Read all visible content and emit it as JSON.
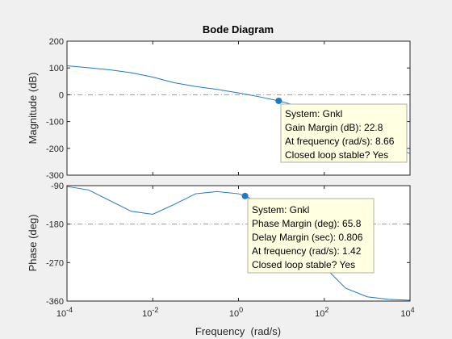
{
  "chart_data": {
    "type": "line",
    "title": "Bode Diagram",
    "xlabel": "Frequency  (rad/s)",
    "x_scale": "log",
    "xlim": [
      0.0001,
      10000
    ],
    "x_ticks": [
      0.0001,
      0.01,
      1,
      100,
      10000
    ],
    "x_tick_labels": [
      {
        "base": "10",
        "exp": "-4"
      },
      {
        "base": "10",
        "exp": "-2"
      },
      {
        "base": "10",
        "exp": "0"
      },
      {
        "base": "10",
        "exp": "2"
      },
      {
        "base": "10",
        "exp": "4"
      }
    ],
    "grid": false,
    "colors": {
      "line": "#1f78c1",
      "refline": "#9a9a9a",
      "tip_bg": "#ffffe1",
      "tip_border": "#b0b0a0",
      "axis": "#262626"
    },
    "panels": [
      {
        "ylabel": "Magnitude (dB)",
        "ylim": [
          -300,
          200
        ],
        "yticks": [
          200,
          100,
          0,
          -100,
          -200,
          -300
        ],
        "ytick_labels": [
          "200",
          "100",
          "0",
          "-100",
          "-200",
          "-300"
        ],
        "reference_line": 0,
        "series": [
          {
            "x": [
              0.0001,
              0.000316,
              0.001,
              0.00316,
              0.01,
              0.0316,
              0.1,
              0.316,
              1,
              3.16,
              8.66,
              31.6,
              100,
              316,
              1000,
              3160,
              10000
            ],
            "y": [
              108,
              101,
              93,
              82,
              66,
              45,
              31,
              20,
              7,
              -8,
              -22.8,
              -47,
              -68,
              -100,
              -140,
              -180,
              -220
            ]
          }
        ],
        "marker": {
          "x": 8.66,
          "y": -22.8
        },
        "datatip": {
          "lines": [
            "System: Gnkl",
            "Gain Margin (dB): 22.8",
            "At frequency (rad/s): 8.66",
            "Closed loop stable? Yes"
          ]
        }
      },
      {
        "ylabel": "Phase (deg)",
        "ylim": [
          -360,
          -90
        ],
        "yticks": [
          -90,
          -180,
          -270,
          -360
        ],
        "ytick_labels": [
          "-90",
          "-180",
          "-270",
          "-360"
        ],
        "reference_line": -180,
        "series": [
          {
            "x": [
              0.0001,
              0.000316,
              0.001,
              0.00316,
              0.01,
              0.0316,
              0.1,
              0.316,
              1,
              1.42,
              3.16,
              10,
              31.6,
              100,
              316,
              1000,
              3160,
              10000
            ],
            "y": [
              -92,
              -100,
              -125,
              -150,
              -157,
              -134,
              -109,
              -104,
              -109,
              -114.2,
              -130,
              -170,
              -220,
              -280,
              -330,
              -350,
              -356,
              -358
            ]
          }
        ],
        "marker": {
          "x": 1.42,
          "y": -114.2
        },
        "datatip": {
          "lines": [
            "System: Gnkl",
            "Phase Margin (deg): 65.8",
            "Delay Margin (sec): 0.806",
            "At frequency (rad/s): 1.42",
            "Closed loop stable? Yes"
          ]
        }
      }
    ]
  }
}
